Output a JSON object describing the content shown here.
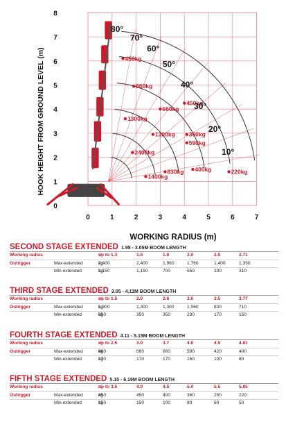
{
  "chart_data": {
    "type": "line",
    "xlabel": "WORKING RADIUS (m)",
    "ylabel": "HOOK HEIGHT FROM GROUND LEVEL (m)",
    "xlim": [
      0,
      7
    ],
    "ylim": [
      0,
      8
    ],
    "x_ticks": [
      "0",
      "1",
      "2",
      "3",
      "4",
      "5",
      "6",
      "7"
    ],
    "y_ticks": [
      "0",
      "1",
      "2",
      "3",
      "4",
      "5",
      "6",
      "7",
      "8"
    ],
    "grid": true,
    "boom_angles": [
      "80°",
      "70°",
      "60°",
      "50°",
      "40°",
      "30°",
      "20°",
      "10°"
    ],
    "load_points": [
      {
        "label": "450kg",
        "x": 1.45,
        "y": 6.1
      },
      {
        "label": "660kg",
        "x": 1.9,
        "y": 4.95
      },
      {
        "label": "450kg",
        "x": 4.0,
        "y": 4.25
      },
      {
        "label": "660kg",
        "x": 3.0,
        "y": 4.0
      },
      {
        "label": "1300kg",
        "x": 1.55,
        "y": 3.6
      },
      {
        "label": "1300kg",
        "x": 2.7,
        "y": 2.95
      },
      {
        "label": "360kg",
        "x": 4.1,
        "y": 2.95
      },
      {
        "label": "590kg",
        "x": 4.1,
        "y": 2.6
      },
      {
        "label": "2400kg",
        "x": 1.85,
        "y": 2.2
      },
      {
        "label": "400kg",
        "x": 4.35,
        "y": 1.5
      },
      {
        "label": "830kg",
        "x": 3.2,
        "y": 1.4
      },
      {
        "label": "1400kg",
        "x": 2.4,
        "y": 1.2
      },
      {
        "label": "220kg",
        "x": 5.85,
        "y": 1.4
      }
    ]
  },
  "tables": [
    {
      "title": "SECOND STAGE EXTENDED",
      "boom_length": "1.98 - 3.05M BOOM LENGTH",
      "radius_label": "Working radius",
      "radius_unit": "m",
      "radius": [
        "up to 1.3",
        "1.5",
        "1.8",
        "2.0",
        "2.5",
        "2.71"
      ],
      "outrigger_label": "Outrigger",
      "rows": [
        {
          "name": "Max-extended",
          "unit": "kg",
          "values": [
            "2,400",
            "2,400",
            "1,960",
            "1,760",
            "1,400",
            "1,350"
          ]
        },
        {
          "name": "Min-extended",
          "unit": "kg",
          "values": [
            "1,150",
            "1,150",
            "700",
            "550",
            "330",
            "310"
          ]
        }
      ]
    },
    {
      "title": "THIRD STAGE EXTENDED",
      "boom_length": "3.05 - 4.11M BOOM LENGTH",
      "radius_label": "Working radius",
      "radius_unit": "m",
      "radius": [
        "up to 1.5",
        "2.0",
        "2.6",
        "3.0",
        "3.5",
        "3.77"
      ],
      "outrigger_label": "Outrigger",
      "rows": [
        {
          "name": "Max-extended",
          "unit": "kg",
          "values": [
            "1,300",
            "1,300",
            "1,300",
            "1,060",
            "830",
            "710"
          ]
        },
        {
          "name": "Min-extended",
          "unit": "kg",
          "values": [
            "350",
            "350",
            "350",
            "230",
            "170",
            "150"
          ]
        }
      ]
    },
    {
      "title": "FOURTH STAGE EXTENDED",
      "boom_length": "4.11 - 5.15M BOOM LENGTH",
      "radius_label": "Working radius",
      "radius_unit": "m",
      "radius": [
        "up to 2.5",
        "3.0",
        "3.7",
        "4.0",
        "4.5",
        "4.81"
      ],
      "outrigger_label": "Outrigger",
      "rows": [
        {
          "name": "Max-extended",
          "unit": "kg",
          "values": [
            "660",
            "660",
            "660",
            "590",
            "420",
            "400"
          ]
        },
        {
          "name": "Min-extended",
          "unit": "kg",
          "values": [
            "170",
            "170",
            "170",
            "150",
            "100",
            "80"
          ]
        }
      ]
    },
    {
      "title": "FIFTH STAGE EXTENDED",
      "boom_length": "5.15 - 6.19M BOOM LENGTH",
      "radius_label": "Working radius",
      "radius_unit": "m",
      "radius": [
        "up to 3.5",
        "4.0",
        "4.5",
        "5.0",
        "5.5",
        "5.85"
      ],
      "outrigger_label": "Outrigger",
      "rows": [
        {
          "name": "Max-extended",
          "unit": "kg",
          "values": [
            "450",
            "450",
            "400",
            "360",
            "250",
            "220"
          ]
        },
        {
          "name": "Min-extended",
          "unit": "kg",
          "values": [
            "150",
            "150",
            "100",
            "80",
            "60",
            "50"
          ]
        }
      ]
    }
  ],
  "colors": {
    "accent": "#cc1a2a",
    "grid": "#e79aa2",
    "arc": "#333333"
  }
}
